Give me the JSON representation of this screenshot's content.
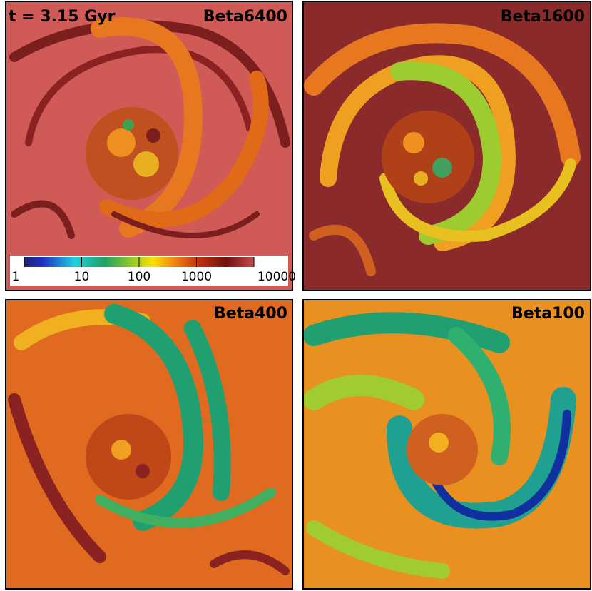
{
  "time_label": "t = 3.15 Gyr",
  "panels": [
    {
      "label": "Beta6400"
    },
    {
      "label": "Beta1600"
    },
    {
      "label": "Beta400"
    },
    {
      "label": "Beta100"
    }
  ],
  "colorbar": {
    "ticks": [
      1,
      10,
      100,
      1000,
      10000
    ],
    "log": true
  }
}
